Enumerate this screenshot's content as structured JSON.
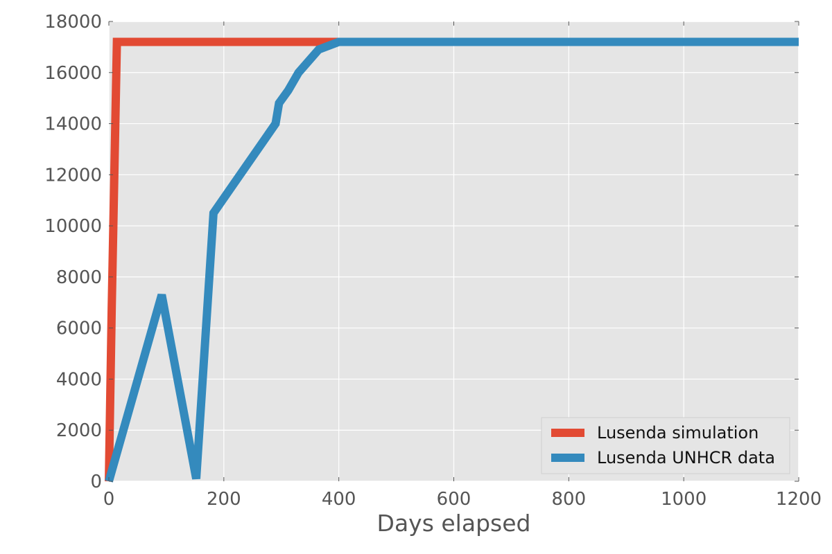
{
  "chart_data": {
    "type": "line",
    "xlabel": "Days elapsed",
    "ylabel": "",
    "xlim": [
      0,
      1200
    ],
    "ylim": [
      0,
      18000
    ],
    "xticks": [
      0,
      200,
      400,
      600,
      800,
      1000,
      1200
    ],
    "yticks": [
      0,
      2000,
      4000,
      6000,
      8000,
      10000,
      12000,
      14000,
      16000,
      18000
    ],
    "xtick_labels": [
      "0",
      "200",
      "400",
      "600",
      "800",
      "1000",
      "1200"
    ],
    "ytick_labels": [
      "0",
      "2000",
      "4000",
      "6000",
      "8000",
      "10000",
      "12000",
      "14000",
      "16000",
      "18000"
    ],
    "grid": true,
    "legend_position": "bottom-right",
    "series": [
      {
        "name": "Lusenda simulation",
        "color": "#E24A33",
        "points": [
          [
            0,
            0
          ],
          [
            5,
            6800
          ],
          [
            14,
            17200
          ],
          [
            400,
            17200
          ]
        ]
      },
      {
        "name": "Lusenda UNHCR data",
        "color": "#348ABD",
        "points": [
          [
            0,
            0
          ],
          [
            92,
            7300
          ],
          [
            152,
            100
          ],
          [
            182,
            10500
          ],
          [
            290,
            14000
          ],
          [
            296,
            14800
          ],
          [
            312,
            15300
          ],
          [
            330,
            16000
          ],
          [
            365,
            16900
          ],
          [
            400,
            17200
          ],
          [
            1200,
            17200
          ]
        ]
      }
    ]
  }
}
